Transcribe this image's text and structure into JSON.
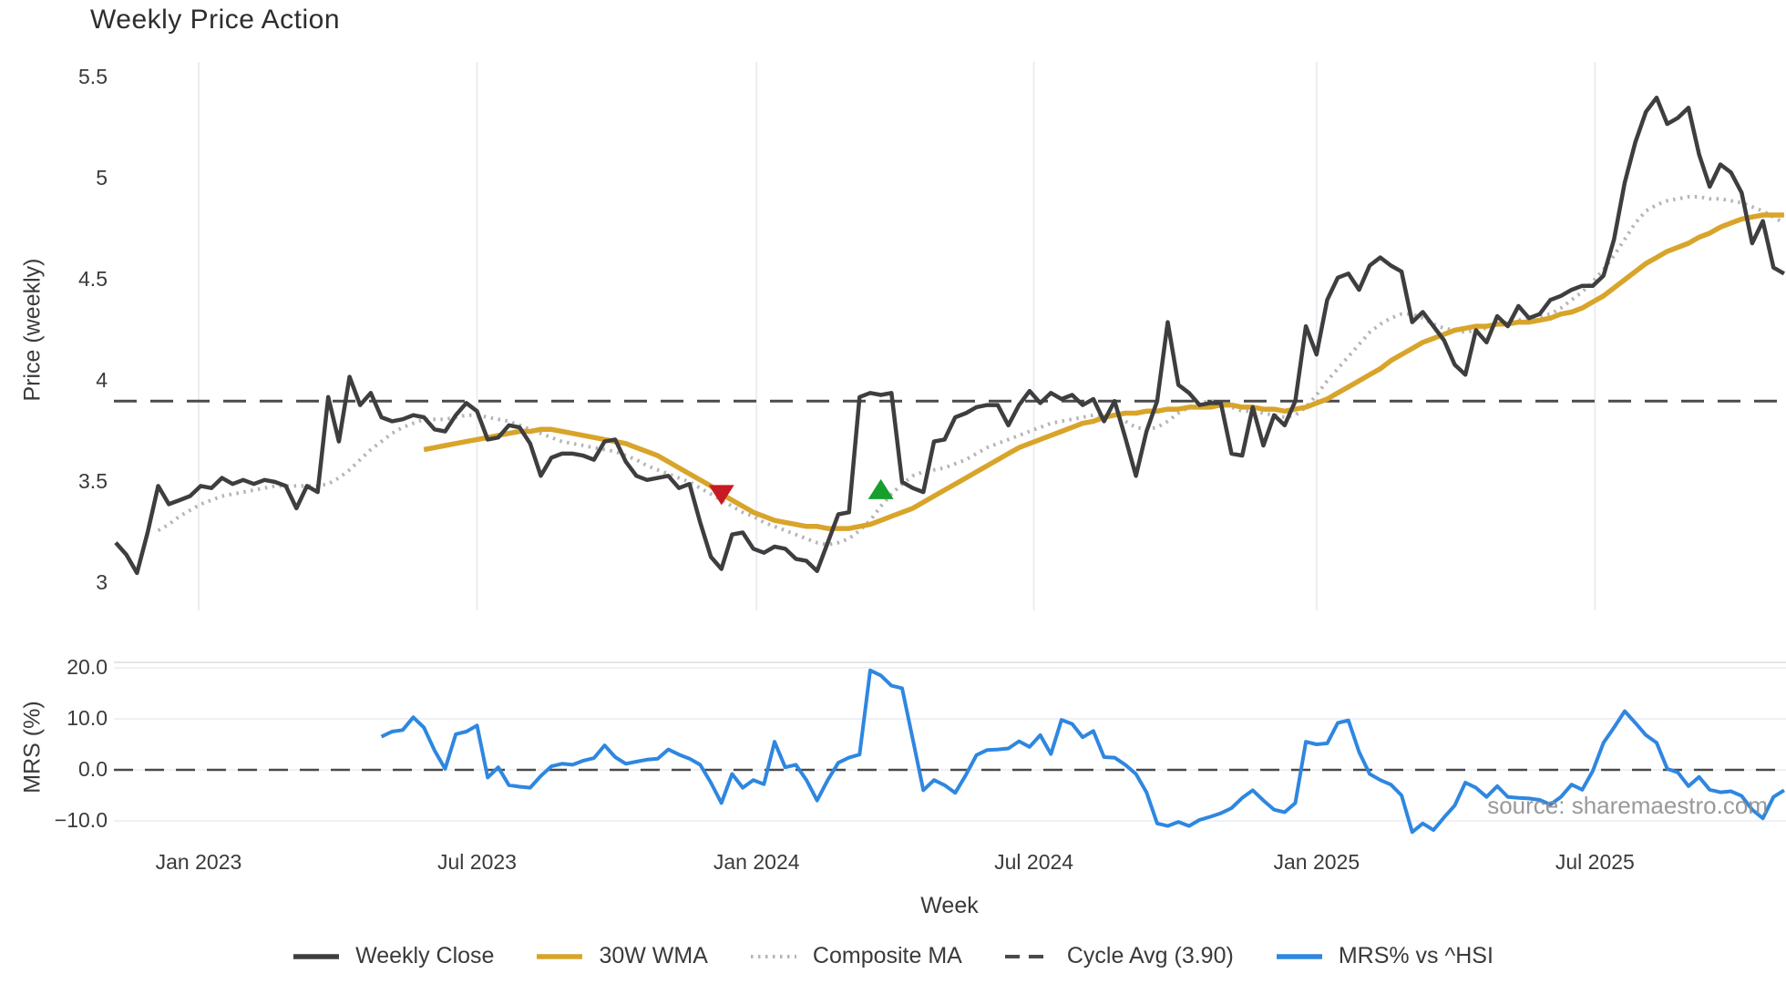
{
  "title": "Weekly Price Action",
  "xlabel": "Week",
  "watermark": "source: sharemaestro.com",
  "colors": {
    "close": "#3e3e40",
    "wma": "#d8a42a",
    "composite": "#b5b5b5",
    "cycle": "#4a4a4c",
    "mrs": "#2e87e0",
    "buy_marker": "#189e2d",
    "sell_marker": "#c81a22",
    "grid": "#ececf2",
    "panel_border": "#dcdce2",
    "text": "#3a3a3a",
    "title_text": "#2d2d2d",
    "watermark_text": "#8e8e8e"
  },
  "chart_data": [
    {
      "panel": "price",
      "type": "line",
      "title": "Weekly Price Action",
      "ylabel": "Price (weekly)",
      "ylim": [
        2.84,
        5.6
      ],
      "grid": "vertical-only",
      "yticks": [
        {
          "value": 5.5,
          "label": "5.5"
        },
        {
          "value": 5.0,
          "label": "5"
        },
        {
          "value": 4.5,
          "label": "4.5"
        },
        {
          "value": 4.0,
          "label": "4"
        },
        {
          "value": 3.5,
          "label": "3.5"
        },
        {
          "value": 3.0,
          "label": "3"
        }
      ],
      "xticks": [
        {
          "week": 7.8,
          "label": "Jan 2023"
        },
        {
          "week": 34.0,
          "label": "Jul 2023"
        },
        {
          "week": 60.3,
          "label": "Jan 2024"
        },
        {
          "week": 86.4,
          "label": "Jul 2024"
        },
        {
          "week": 113.0,
          "label": "Jan 2025"
        },
        {
          "week": 139.2,
          "label": "Jul 2025"
        }
      ],
      "x_range_weeks": [
        0,
        157
      ],
      "reference_line": {
        "name": "Cycle Avg (3.90)",
        "value": 3.9,
        "style": "dashed"
      },
      "series": [
        {
          "name": "Weekly Close",
          "style": "solid",
          "color_key": "close",
          "start_week": 0,
          "values": [
            3.2,
            3.14,
            3.05,
            3.25,
            3.48,
            3.39,
            3.41,
            3.43,
            3.48,
            3.47,
            3.52,
            3.49,
            3.51,
            3.49,
            3.51,
            3.5,
            3.48,
            3.37,
            3.48,
            3.45,
            3.92,
            3.7,
            4.02,
            3.88,
            3.94,
            3.82,
            3.8,
            3.81,
            3.83,
            3.82,
            3.76,
            3.75,
            3.83,
            3.89,
            3.85,
            3.71,
            3.72,
            3.78,
            3.77,
            3.69,
            3.53,
            3.62,
            3.64,
            3.64,
            3.63,
            3.61,
            3.7,
            3.71,
            3.6,
            3.53,
            3.51,
            3.52,
            3.53,
            3.47,
            3.49,
            3.3,
            3.13,
            3.07,
            3.24,
            3.25,
            3.17,
            3.15,
            3.18,
            3.17,
            3.12,
            3.11,
            3.06,
            3.2,
            3.34,
            3.35,
            3.92,
            3.94,
            3.93,
            3.94,
            3.5,
            3.47,
            3.45,
            3.7,
            3.71,
            3.82,
            3.84,
            3.87,
            3.88,
            3.88,
            3.78,
            3.88,
            3.95,
            3.89,
            3.94,
            3.91,
            3.93,
            3.88,
            3.91,
            3.8,
            3.9,
            3.72,
            3.53,
            3.75,
            3.9,
            4.29,
            3.98,
            3.94,
            3.88,
            3.89,
            3.89,
            3.64,
            3.63,
            3.87,
            3.68,
            3.83,
            3.78,
            3.9,
            4.27,
            4.13,
            4.4,
            4.51,
            4.53,
            4.45,
            4.57,
            4.61,
            4.57,
            4.54,
            4.29,
            4.34,
            4.27,
            4.2,
            4.08,
            4.03,
            4.25,
            4.19,
            4.32,
            4.27,
            4.37,
            4.31,
            4.33,
            4.4,
            4.42,
            4.45,
            4.47,
            4.47,
            4.52,
            4.7,
            4.98,
            5.18,
            5.33,
            5.4,
            5.27,
            5.3,
            5.35,
            5.12,
            4.96,
            5.07,
            5.03,
            4.93,
            4.68,
            4.79,
            4.56,
            4.53
          ]
        },
        {
          "name": "30W WMA",
          "style": "solid",
          "color_key": "wma",
          "start_week": 29,
          "values": [
            3.66,
            3.67,
            3.68,
            3.69,
            3.7,
            3.71,
            3.72,
            3.73,
            3.74,
            3.75,
            3.75,
            3.76,
            3.76,
            3.75,
            3.74,
            3.73,
            3.72,
            3.71,
            3.7,
            3.69,
            3.67,
            3.65,
            3.63,
            3.6,
            3.57,
            3.54,
            3.51,
            3.48,
            3.44,
            3.41,
            3.38,
            3.35,
            3.33,
            3.31,
            3.3,
            3.29,
            3.28,
            3.28,
            3.27,
            3.27,
            3.27,
            3.28,
            3.29,
            3.31,
            3.33,
            3.35,
            3.37,
            3.4,
            3.43,
            3.46,
            3.49,
            3.52,
            3.55,
            3.58,
            3.61,
            3.64,
            3.67,
            3.69,
            3.71,
            3.73,
            3.75,
            3.77,
            3.79,
            3.8,
            3.82,
            3.83,
            3.84,
            3.84,
            3.85,
            3.85,
            3.86,
            3.86,
            3.87,
            3.87,
            3.87,
            3.88,
            3.88,
            3.87,
            3.87,
            3.86,
            3.86,
            3.85,
            3.86,
            3.87,
            3.89,
            3.91,
            3.94,
            3.97,
            4.0,
            4.03,
            4.06,
            4.1,
            4.13,
            4.16,
            4.19,
            4.21,
            4.23,
            4.25,
            4.26,
            4.27,
            4.27,
            4.28,
            4.28,
            4.29,
            4.29,
            4.3,
            4.31,
            4.33,
            4.34,
            4.36,
            4.39,
            4.42,
            4.46,
            4.5,
            4.54,
            4.58,
            4.61,
            4.64,
            4.66,
            4.68,
            4.71,
            4.73,
            4.76,
            4.78,
            4.8,
            4.81,
            4.82,
            4.82,
            4.82
          ]
        },
        {
          "name": "Composite MA",
          "style": "dotted",
          "color_key": "composite",
          "start_week": 4,
          "values": [
            3.26,
            3.29,
            3.33,
            3.36,
            3.39,
            3.41,
            3.43,
            3.44,
            3.45,
            3.46,
            3.47,
            3.48,
            3.48,
            3.48,
            3.48,
            3.48,
            3.49,
            3.52,
            3.56,
            3.61,
            3.66,
            3.7,
            3.74,
            3.77,
            3.79,
            3.81,
            3.81,
            3.81,
            3.82,
            3.83,
            3.83,
            3.82,
            3.81,
            3.8,
            3.78,
            3.76,
            3.74,
            3.72,
            3.7,
            3.69,
            3.68,
            3.67,
            3.66,
            3.65,
            3.63,
            3.61,
            3.58,
            3.56,
            3.54,
            3.52,
            3.5,
            3.47,
            3.44,
            3.41,
            3.38,
            3.35,
            3.33,
            3.3,
            3.28,
            3.26,
            3.24,
            3.22,
            3.2,
            3.19,
            3.2,
            3.22,
            3.26,
            3.31,
            3.38,
            3.44,
            3.49,
            3.53,
            3.55,
            3.56,
            3.57,
            3.59,
            3.61,
            3.64,
            3.67,
            3.69,
            3.71,
            3.73,
            3.75,
            3.77,
            3.79,
            3.8,
            3.81,
            3.82,
            3.83,
            3.83,
            3.83,
            3.8,
            3.77,
            3.76,
            3.77,
            3.8,
            3.84,
            3.87,
            3.89,
            3.9,
            3.89,
            3.87,
            3.85,
            3.85,
            3.84,
            3.83,
            3.82,
            3.83,
            3.87,
            3.93,
            4.0,
            4.06,
            4.12,
            4.18,
            4.24,
            4.28,
            4.31,
            4.33,
            4.33,
            4.31,
            4.28,
            4.26,
            4.25,
            4.24,
            4.25,
            4.26,
            4.28,
            4.29,
            4.3,
            4.31,
            4.32,
            4.33,
            4.36,
            4.4,
            4.44,
            4.49,
            4.55,
            4.62,
            4.7,
            4.78,
            4.84,
            4.87,
            4.89,
            4.9,
            4.91,
            4.91,
            4.9,
            4.9,
            4.89,
            4.88,
            4.86,
            4.84,
            4.81,
            4.78
          ]
        }
      ],
      "markers": [
        {
          "week": 57,
          "price": 3.44,
          "shape": "triangle-down",
          "meaning": "sell-signal",
          "color_key": "sell_marker"
        },
        {
          "week": 72,
          "price": 3.46,
          "shape": "triangle-up",
          "meaning": "buy-signal",
          "color_key": "buy_marker"
        }
      ]
    },
    {
      "panel": "mrs",
      "type": "line",
      "ylabel": "MRS (%)",
      "ylim": [
        -13.5,
        21.0
      ],
      "grid": "horizontal-only",
      "yticks": [
        {
          "value": 20.0,
          "label": "20.0"
        },
        {
          "value": 10.0,
          "label": "10.0"
        },
        {
          "value": 0.0,
          "label": "0.0"
        },
        {
          "value": -10.0,
          "label": "−10.0"
        }
      ],
      "zero_line": {
        "value": 0.0,
        "style": "dashed"
      },
      "series": [
        {
          "name": "MRS% vs ^HSI",
          "style": "solid",
          "color_key": "mrs",
          "start_week": 25,
          "values": [
            6.5,
            7.5,
            7.8,
            10.3,
            8.3,
            3.8,
            0.2,
            7.0,
            7.5,
            8.7,
            -1.5,
            0.5,
            -3.0,
            -3.3,
            -3.5,
            -1.2,
            0.7,
            1.2,
            1.0,
            1.8,
            2.3,
            4.8,
            2.5,
            1.2,
            1.6,
            2.0,
            2.2,
            4.0,
            3.0,
            2.2,
            1.0,
            -2.5,
            -6.5,
            -0.8,
            -3.5,
            -2.0,
            -2.8,
            5.5,
            0.5,
            1.0,
            -2.0,
            -6.0,
            -2.0,
            1.4,
            2.4,
            3.0,
            19.5,
            18.5,
            16.5,
            16.0,
            6.0,
            -4.0,
            -2.0,
            -3.0,
            -4.5,
            -1.0,
            2.9,
            3.9,
            4.0,
            4.2,
            5.6,
            4.5,
            6.8,
            3.1,
            9.8,
            9.0,
            6.4,
            7.6,
            2.5,
            2.4,
            1.0,
            -0.8,
            -4.4,
            -10.5,
            -11.0,
            -10.2,
            -11.0,
            -9.8,
            -9.2,
            -8.5,
            -7.5,
            -5.5,
            -4.0,
            -6.0,
            -7.8,
            -8.3,
            -6.5,
            5.5,
            5.0,
            5.2,
            9.2,
            9.7,
            3.5,
            -0.8,
            -2.0,
            -2.9,
            -5.0,
            -12.2,
            -10.5,
            -11.8,
            -9.3,
            -7.0,
            -2.5,
            -3.5,
            -5.3,
            -3.2,
            -5.3,
            -5.5,
            -5.6,
            -5.9,
            -6.8,
            -5.3,
            -2.9,
            -3.9,
            -0.2,
            5.3,
            8.3,
            11.5,
            9.2,
            6.8,
            5.3,
            0.2,
            -0.5,
            -3.2,
            -1.4,
            -3.9,
            -4.4,
            -4.2,
            -5.1,
            -7.8,
            -9.5,
            -5.3,
            -4.0
          ]
        }
      ]
    }
  ],
  "legend": [
    {
      "label": "Weekly Close",
      "swatch": "solid",
      "color_key": "close"
    },
    {
      "label": "30W WMA",
      "swatch": "solid",
      "color_key": "wma"
    },
    {
      "label": "Composite MA",
      "swatch": "dotted",
      "color_key": "composite"
    },
    {
      "label": "Cycle Avg (3.90)",
      "swatch": "dashed",
      "color_key": "cycle"
    },
    {
      "label": "MRS% vs ^HSI",
      "swatch": "solid",
      "color_key": "mrs"
    }
  ]
}
